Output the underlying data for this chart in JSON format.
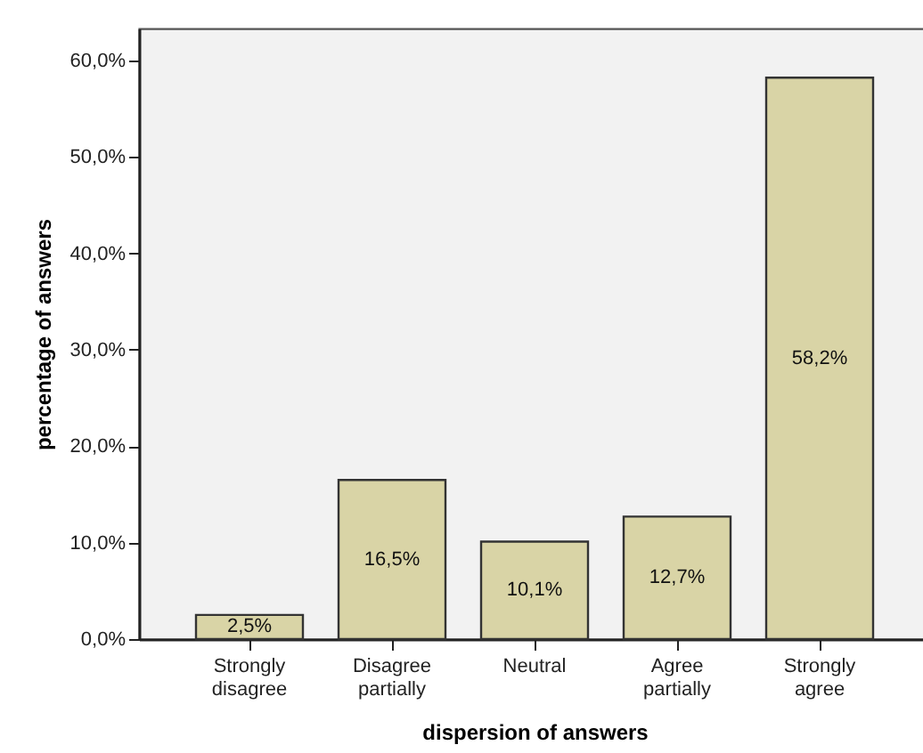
{
  "chart_data": {
    "type": "bar",
    "xlabel": "dispersion of answers",
    "ylabel": "percentage of answers",
    "categories": [
      "Strongly disagree",
      "Disagree partially",
      "Neutral",
      "Agree partially",
      "Strongly agree"
    ],
    "values": [
      2.5,
      16.5,
      10.1,
      12.7,
      58.2
    ],
    "value_labels": [
      "2,5%",
      "16,5%",
      "10,1%",
      "12,7%",
      "58,2%"
    ],
    "color": "#d9d4a6",
    "ylim": [
      0,
      63.3
    ],
    "yticks": [
      {
        "value": 0,
        "label": "0,0%"
      },
      {
        "value": 10,
        "label": "10,0%"
      },
      {
        "value": 20,
        "label": "20,0%"
      },
      {
        "value": 30,
        "label": "30,0%"
      },
      {
        "value": 40,
        "label": "40,0%"
      },
      {
        "value": 50,
        "label": "50,0%"
      },
      {
        "value": 60,
        "label": "60,0%"
      }
    ],
    "grid": false
  }
}
